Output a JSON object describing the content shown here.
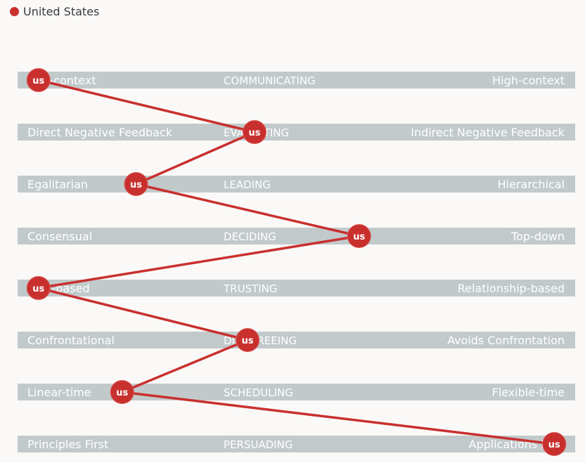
{
  "legend": {
    "label": "United States",
    "color": "#c8302e"
  },
  "chart_data": {
    "type": "line",
    "scale": [
      1,
      9
    ],
    "series": [
      {
        "name": "United States",
        "marker_label": "us",
        "color": "#c8302e",
        "values": [
          1.3,
          4.4,
          2.7,
          5.9,
          1.3,
          4.3,
          2.5,
          8.7
        ]
      }
    ],
    "dimensions": [
      {
        "name": "COMMUNICATING",
        "left": "Low-context",
        "right": "High-context"
      },
      {
        "name": "EVALUATING",
        "left": "Direct Negative Feedback",
        "right": "Indirect Negative Feedback"
      },
      {
        "name": "LEADING",
        "left": "Egalitarian",
        "right": "Hierarchical"
      },
      {
        "name": "DECIDING",
        "left": "Consensual",
        "right": "Top-down"
      },
      {
        "name": "TRUSTING",
        "left": "Task-based",
        "right": "Relationship-based"
      },
      {
        "name": "DISAGREEING",
        "left": "Confrontational",
        "right": "Avoids Confrontation"
      },
      {
        "name": "SCHEDULING",
        "left": "Linear-time",
        "right": "Flexible-time"
      },
      {
        "name": "PERSUADING",
        "left": "Principles First",
        "right": "Applications First"
      }
    ],
    "colors": {
      "band": "#c2c9cb",
      "line": "#c8302e",
      "marker": "#c8302e"
    }
  }
}
